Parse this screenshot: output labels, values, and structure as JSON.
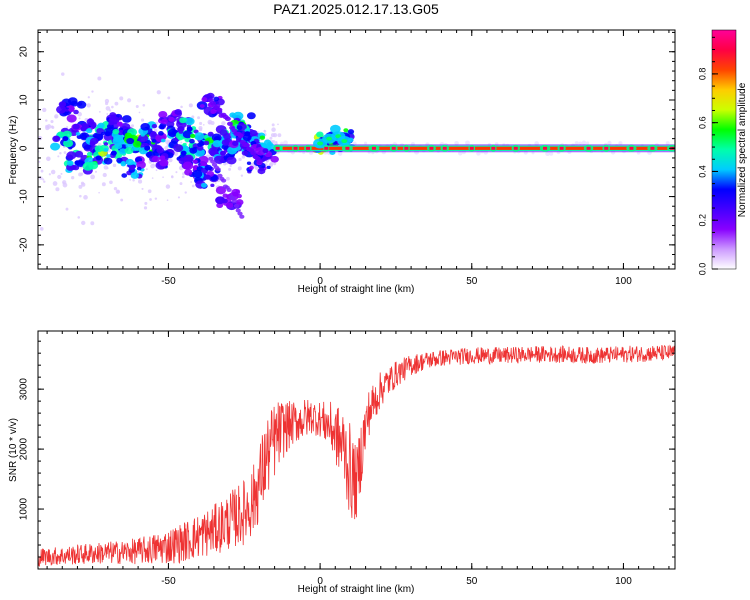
{
  "title": "PAZ1.2025.012.17.13.G05",
  "chart_data": [
    {
      "type": "heatmap",
      "xlabel": "Height of straight line (km)",
      "ylabel": "Frequency (Hz)",
      "xlim": [
        -93,
        117
      ],
      "ylim": [
        -25,
        24.5
      ],
      "xticks": [
        -50,
        0,
        50,
        100
      ],
      "yticks": [
        -20,
        -10,
        0,
        10,
        20
      ],
      "colorbar": {
        "label": "Normalized spectral amplitude",
        "range": [
          0,
          0.98
        ],
        "ticks": [
          0.0,
          0.2,
          0.4,
          0.6,
          0.8
        ],
        "colormap": [
          "#ffffff",
          "#cc99ff",
          "#8800ff",
          "#4400ff",
          "#0000ff",
          "#00ccff",
          "#00ffaa",
          "#00ff00",
          "#ccff00",
          "#ffcc00",
          "#ff4400",
          "#ff0044",
          "#ff0099"
        ]
      },
      "main_band": {
        "x_start": -15,
        "x_end": 117,
        "freq": 0.0,
        "amplitude": 0.97
      },
      "blobs": [
        {
          "x": -84,
          "f": 2,
          "a": 0.3
        },
        {
          "x": -82,
          "f": 8,
          "a": 0.2
        },
        {
          "x": -80,
          "f": -3,
          "a": 0.3
        },
        {
          "x": -78,
          "f": 4,
          "a": 0.25
        },
        {
          "x": -75,
          "f": 1,
          "a": 0.28
        },
        {
          "x": -73,
          "f": -2,
          "a": 0.35
        },
        {
          "x": -70,
          "f": 3,
          "a": 0.3
        },
        {
          "x": -68,
          "f": -1,
          "a": 0.3
        },
        {
          "x": -66,
          "f": 5,
          "a": 0.2
        },
        {
          "x": -64,
          "f": 2,
          "a": 0.3
        },
        {
          "x": -62,
          "f": -4,
          "a": 0.25
        },
        {
          "x": -60,
          "f": 1,
          "a": 0.35
        },
        {
          "x": -57,
          "f": 0,
          "a": 0.32
        },
        {
          "x": -55,
          "f": 3,
          "a": 0.25
        },
        {
          "x": -52,
          "f": -2,
          "a": 0.2
        },
        {
          "x": -49,
          "f": 6,
          "a": 0.2
        },
        {
          "x": -47,
          "f": 2,
          "a": 0.28
        },
        {
          "x": -45,
          "f": -1,
          "a": 0.35
        },
        {
          "x": -43,
          "f": 4,
          "a": 0.3
        },
        {
          "x": -41,
          "f": -4,
          "a": 0.2
        },
        {
          "x": -39,
          "f": 1,
          "a": 0.3
        },
        {
          "x": -37,
          "f": -6,
          "a": 0.25
        },
        {
          "x": -36,
          "f": 9,
          "a": 0.2
        },
        {
          "x": -34,
          "f": 2,
          "a": 0.3
        },
        {
          "x": -32,
          "f": -1,
          "a": 0.25
        },
        {
          "x": -30,
          "f": -10,
          "a": 0.15
        },
        {
          "x": -28,
          "f": 1,
          "a": 0.25
        },
        {
          "x": -26,
          "f": 5,
          "a": 0.35
        },
        {
          "x": -24,
          "f": 3,
          "a": 0.3
        },
        {
          "x": -22,
          "f": 1,
          "a": 0.3
        },
        {
          "x": -20,
          "f": -3,
          "a": 0.2
        },
        {
          "x": -18,
          "f": -0.5,
          "a": 0.25
        },
        {
          "x": 2,
          "f": 1,
          "a": 0.4
        },
        {
          "x": 5,
          "f": 2,
          "a": 0.35
        },
        {
          "x": 7,
          "f": 1.5,
          "a": 0.3
        }
      ]
    },
    {
      "type": "line",
      "xlabel": "Height of straight line (km)",
      "ylabel": "SNR (10 * v/v)",
      "xlim": [
        -93,
        117
      ],
      "ylim": [
        0,
        3970
      ],
      "xticks": [
        -50,
        0,
        50,
        100
      ],
      "yticks": [
        1000,
        2000,
        3000
      ],
      "series": [
        {
          "name": "SNR",
          "color": "#ee3333",
          "x": [
            -93,
            -85,
            -80,
            -75,
            -70,
            -65,
            -60,
            -55,
            -50,
            -45,
            -40,
            -35,
            -30,
            -25,
            -22,
            -20,
            -18,
            -15,
            -12,
            -10,
            -8,
            -5,
            -3,
            0,
            3,
            5,
            8,
            10,
            12,
            14,
            16,
            20,
            25,
            30,
            35,
            40,
            45,
            50,
            60,
            70,
            80,
            90,
            100,
            110,
            117
          ],
          "y": [
            200,
            220,
            240,
            260,
            270,
            280,
            300,
            330,
            380,
            450,
            550,
            650,
            800,
            950,
            1150,
            1450,
            1800,
            2150,
            2350,
            2400,
            2450,
            2500,
            2550,
            2500,
            2400,
            2250,
            2000,
            1600,
            1400,
            2100,
            2600,
            3000,
            3250,
            3400,
            3480,
            3520,
            3540,
            3560,
            3560,
            3580,
            3580,
            3560,
            3580,
            3600,
            3600
          ],
          "spread": [
            150,
            160,
            170,
            180,
            190,
            200,
            220,
            260,
            300,
            340,
            380,
            420,
            480,
            550,
            600,
            650,
            700,
            650,
            500,
            400,
            350,
            350,
            300,
            300,
            400,
            500,
            700,
            800,
            600,
            600,
            400,
            300,
            220,
            180,
            150,
            140,
            140,
            140,
            140,
            140,
            140,
            140,
            140,
            140,
            140
          ]
        }
      ]
    }
  ]
}
